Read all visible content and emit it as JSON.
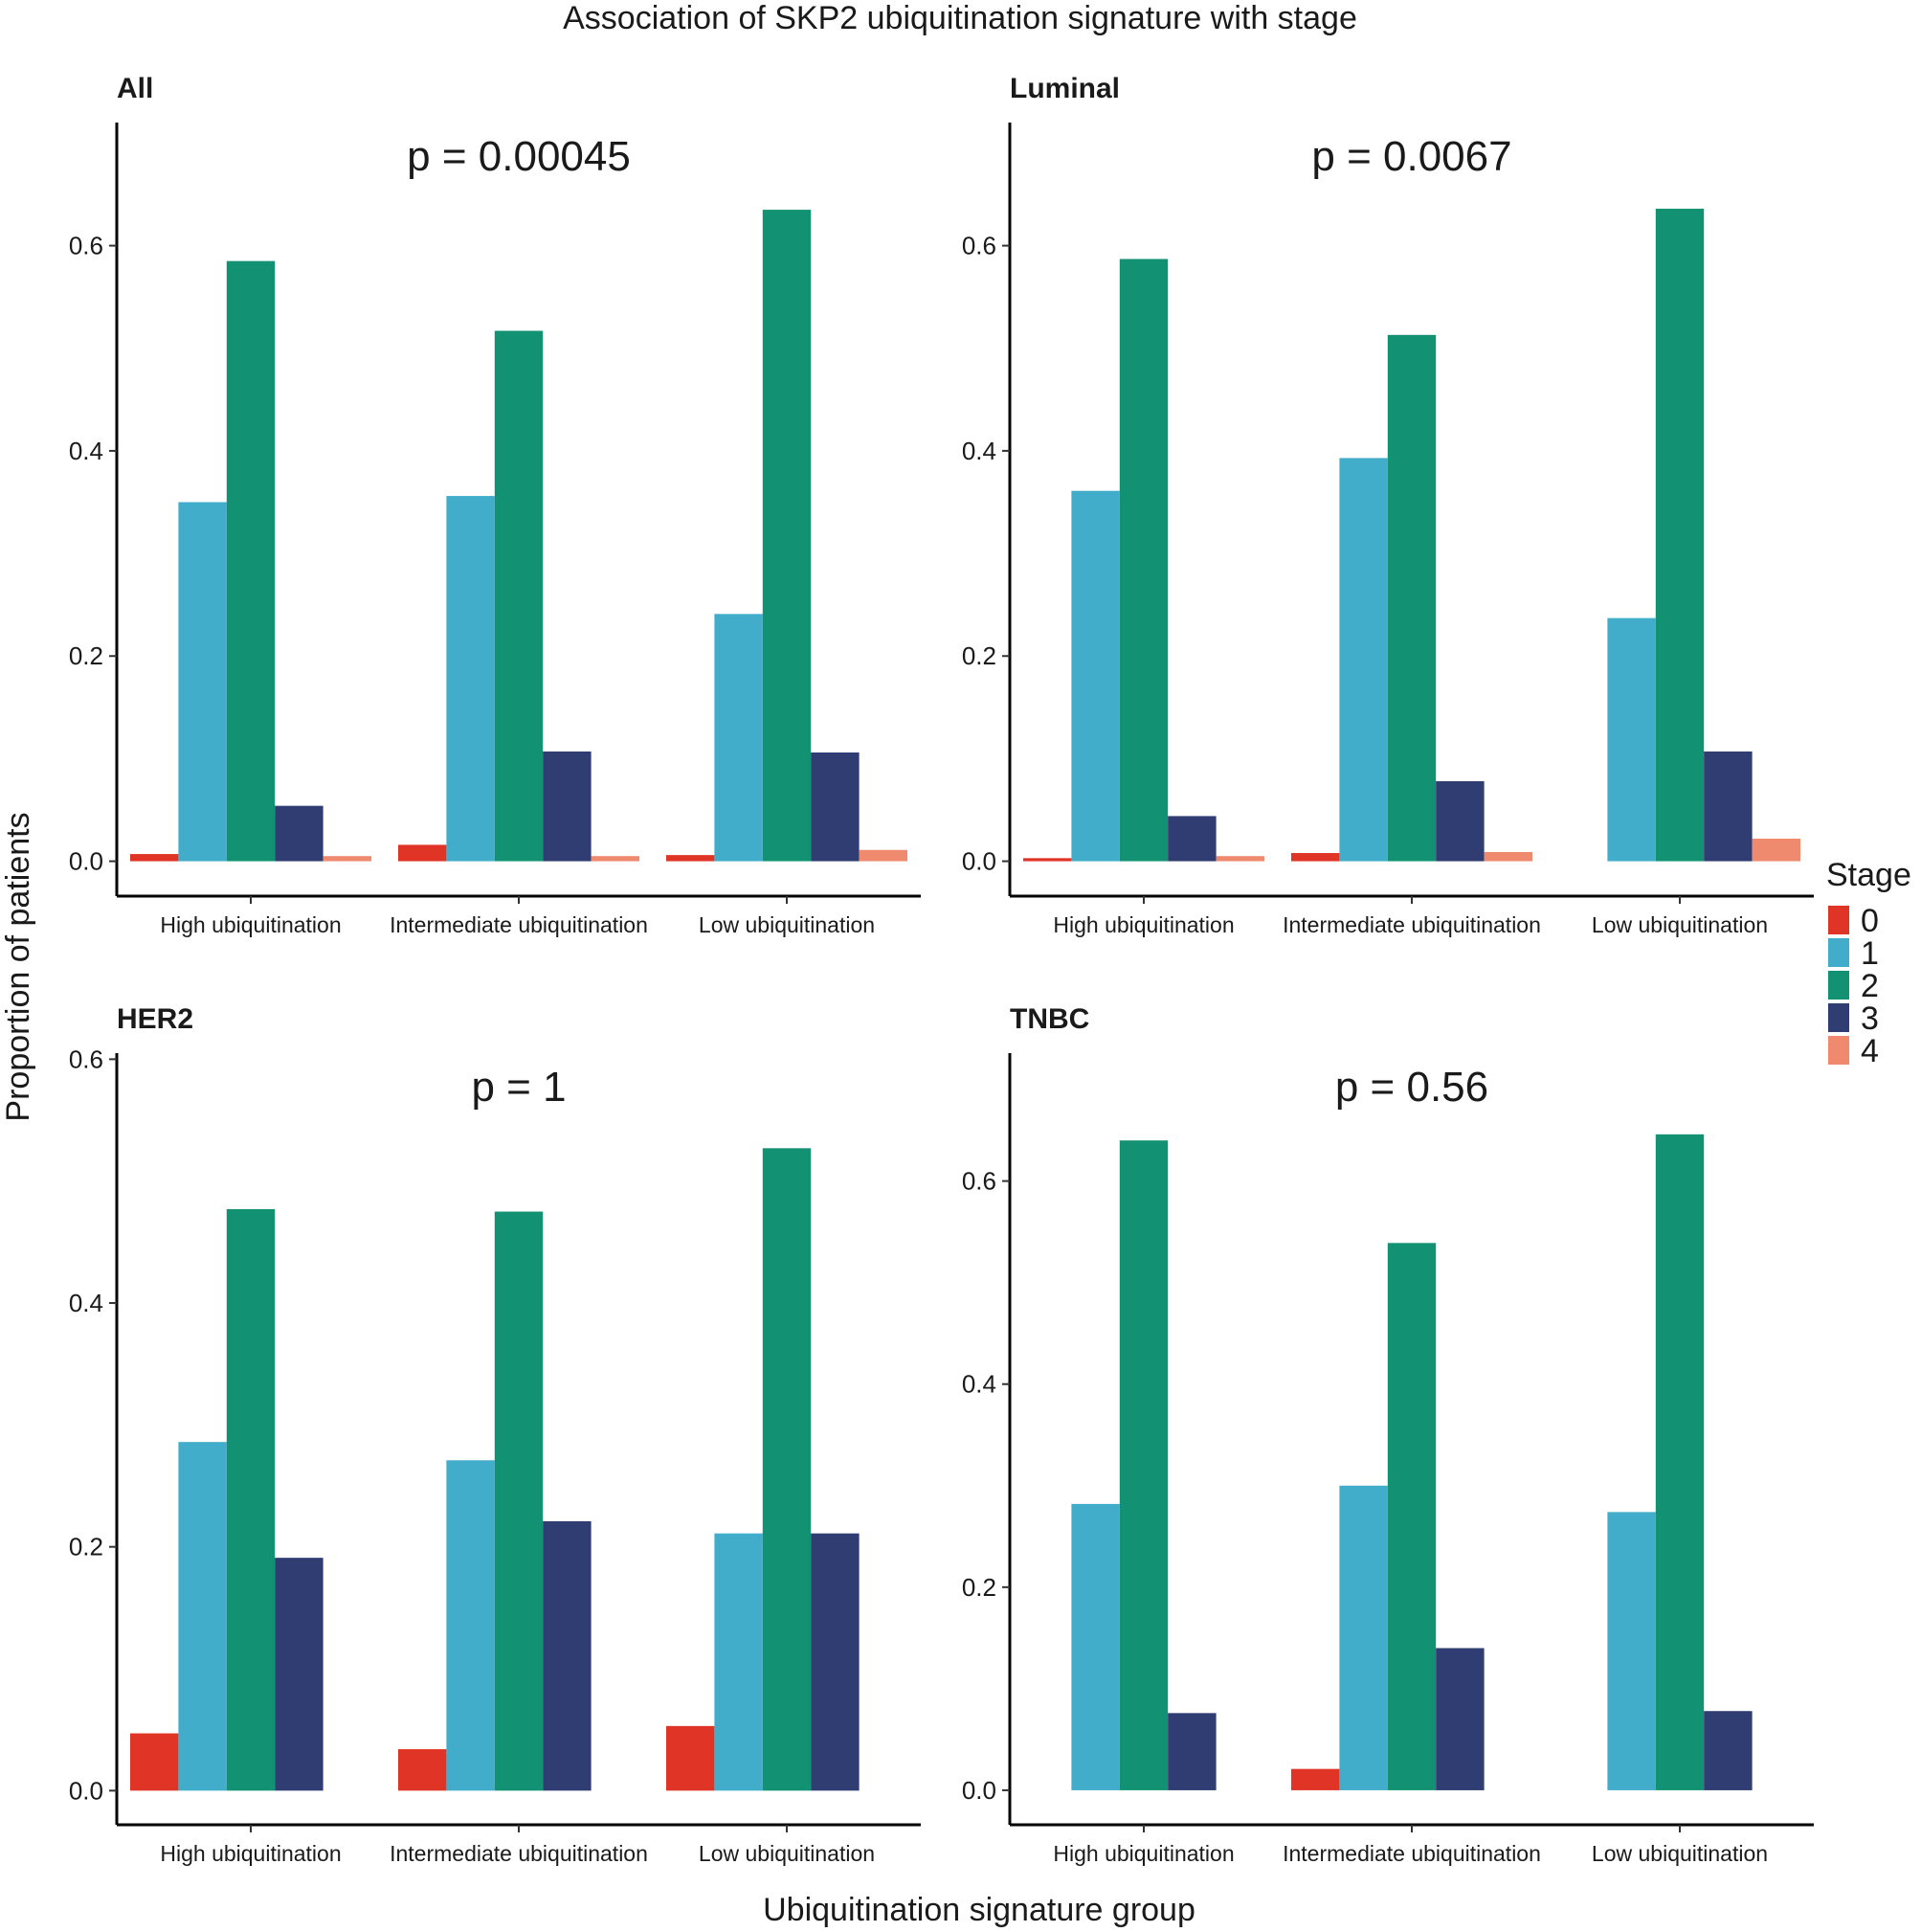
{
  "chart_data": {
    "type": "bar",
    "title": "Association of SKP2 ubiquitination signature with stage",
    "xlabel": "Ubiquitination signature group",
    "ylabel": "Proportion of patients",
    "categories": [
      "High ubiquitination",
      "Intermediate ubiquitination",
      "Low ubiquitination"
    ],
    "legend": {
      "title": "Stage",
      "placement": "right",
      "entries": [
        {
          "label": "0",
          "color": "#E03426"
        },
        {
          "label": "1",
          "color": "#42ACCB"
        },
        {
          "label": "2",
          "color": "#139273"
        },
        {
          "label": "3",
          "color": "#2F3D72"
        },
        {
          "label": "4",
          "color": "#EF8A6F"
        }
      ]
    },
    "panels": [
      {
        "title": "All",
        "annotation": "p = 0.00045",
        "ylim": [
          -0.034,
          0.72
        ],
        "yticks": [
          0.0,
          0.2,
          0.4,
          0.6
        ],
        "ytick_labels": [
          "0.0",
          "0.2",
          "0.4",
          "0.6"
        ],
        "series": [
          {
            "name": "0",
            "values": [
              0.007,
              0.016,
              0.006
            ]
          },
          {
            "name": "1",
            "values": [
              0.35,
              0.356,
              0.241
            ]
          },
          {
            "name": "2",
            "values": [
              0.585,
              0.517,
              0.635
            ]
          },
          {
            "name": "3",
            "values": [
              0.054,
              0.107,
              0.106
            ]
          },
          {
            "name": "4",
            "values": [
              0.005,
              0.005,
              0.011
            ]
          }
        ]
      },
      {
        "title": "Luminal",
        "annotation": "p = 0.0067",
        "ylim": [
          -0.034,
          0.72
        ],
        "yticks": [
          0.0,
          0.2,
          0.4,
          0.6
        ],
        "ytick_labels": [
          "0.0",
          "0.2",
          "0.4",
          "0.6"
        ],
        "series": [
          {
            "name": "0",
            "values": [
              0.003,
              0.008,
              null
            ]
          },
          {
            "name": "1",
            "values": [
              0.361,
              0.393,
              0.237
            ]
          },
          {
            "name": "2",
            "values": [
              0.587,
              0.513,
              0.636
            ]
          },
          {
            "name": "3",
            "values": [
              0.044,
              0.078,
              0.107
            ]
          },
          {
            "name": "4",
            "values": [
              0.005,
              0.009,
              0.022
            ]
          }
        ]
      },
      {
        "title": "HER2",
        "annotation": "p = 1",
        "ylim": [
          -0.028,
          0.605
        ],
        "yticks": [
          0.0,
          0.2,
          0.4,
          0.6
        ],
        "ytick_labels": [
          "0.0",
          "0.2",
          "0.4",
          "0.6"
        ],
        "series": [
          {
            "name": "0",
            "values": [
              0.047,
              0.034,
              0.053
            ]
          },
          {
            "name": "1",
            "values": [
              0.286,
              0.271,
              0.211
            ]
          },
          {
            "name": "2",
            "values": [
              0.477,
              0.475,
              0.527
            ]
          },
          {
            "name": "3",
            "values": [
              0.191,
              0.221,
              0.211
            ]
          },
          {
            "name": "4",
            "values": [
              null,
              null,
              null
            ]
          }
        ]
      },
      {
        "title": "TNBC",
        "annotation": "p = 0.56",
        "ylim": [
          -0.034,
          0.726
        ],
        "yticks": [
          0.0,
          0.2,
          0.4,
          0.6
        ],
        "ytick_labels": [
          "0.0",
          "0.2",
          "0.4",
          "0.6"
        ],
        "series": [
          {
            "name": "0",
            "values": [
              null,
              0.021,
              null
            ]
          },
          {
            "name": "1",
            "values": [
              0.282,
              0.3,
              0.274
            ]
          },
          {
            "name": "2",
            "values": [
              0.64,
              0.539,
              0.646
            ]
          },
          {
            "name": "3",
            "values": [
              0.076,
              0.14,
              0.078
            ]
          },
          {
            "name": "4",
            "values": [
              null,
              null,
              null
            ]
          }
        ]
      }
    ]
  }
}
